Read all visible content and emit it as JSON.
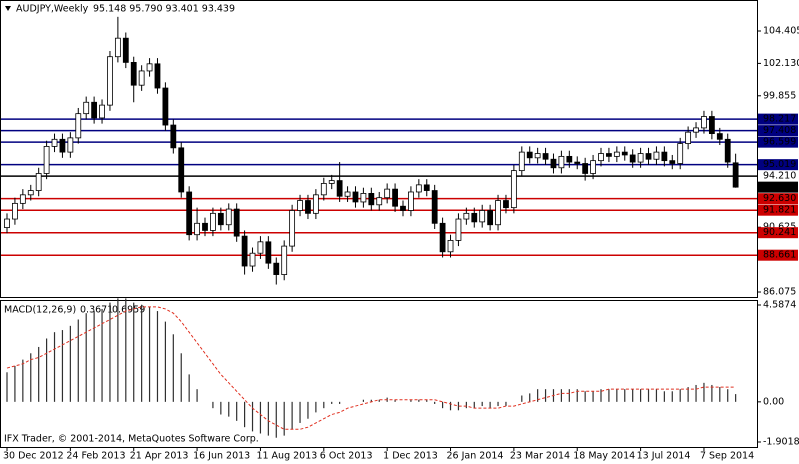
{
  "chart_data": [
    {
      "type": "candlestick",
      "title": "AUDJPY,Weekly",
      "subtitle": "95.148 95.790 93.401 93.439",
      "categories": [
        "30 Dec 2012",
        null,
        null,
        null,
        null,
        null,
        null,
        null,
        "24 Feb 2013",
        null,
        null,
        null,
        null,
        null,
        null,
        null,
        "21 Apr 2013",
        null,
        null,
        null,
        null,
        null,
        null,
        null,
        "16 Jun 2013",
        null,
        null,
        null,
        null,
        null,
        null,
        null,
        "11 Aug 2013",
        null,
        null,
        null,
        null,
        null,
        null,
        null,
        "6 Oct 2013",
        null,
        null,
        null,
        null,
        null,
        null,
        null,
        "1 Dec 2013",
        null,
        null,
        null,
        null,
        null,
        null,
        null,
        "26 Jan 2014",
        null,
        null,
        null,
        null,
        null,
        null,
        null,
        "23 Mar 2014",
        null,
        null,
        null,
        null,
        null,
        null,
        null,
        "18 May 2014",
        null,
        null,
        null,
        null,
        null,
        null,
        null,
        "13 Jul 2014",
        null,
        null,
        null,
        null,
        null,
        null,
        null,
        "7 Sep 2014",
        null,
        null,
        null,
        null
      ],
      "open": [
        90.6,
        91.2,
        92.3,
        92.9,
        93.2,
        94.4,
        96.3,
        96.8,
        95.9,
        96.9,
        98.6,
        99.4,
        98.3,
        99.2,
        102.6,
        103.9,
        102.2,
        100.6,
        101.6,
        102.1,
        100.4,
        97.8,
        96.2,
        93.1,
        90.1,
        90.9,
        90.4,
        91.6,
        90.8,
        91.9,
        90.0,
        87.9,
        88.8,
        89.6,
        88.1,
        87.3,
        89.3,
        91.8,
        92.5,
        91.6,
        92.9,
        93.7,
        93.9,
        92.8,
        93.1,
        92.4,
        93.0,
        92.2,
        92.7,
        93.3,
        92.1,
        91.8,
        93.1,
        93.6,
        93.2,
        90.9,
        88.9,
        89.7,
        91.2,
        91.6,
        91.0,
        91.8,
        90.8,
        92.5,
        92.0,
        94.6,
        95.9,
        95.5,
        95.8,
        95.4,
        94.8,
        95.6,
        95.2,
        95.1,
        94.4,
        95.3,
        95.8,
        95.6,
        95.9,
        95.7,
        95.2,
        95.8,
        95.4,
        95.9,
        95.3,
        95.1,
        96.5,
        97.3,
        97.6,
        98.4,
        97.2,
        96.8,
        95.148
      ],
      "high": [
        91.6,
        92.7,
        93.3,
        93.6,
        94.8,
        96.7,
        97.2,
        97.2,
        97.3,
        99.0,
        99.8,
        99.8,
        99.6,
        103.0,
        105.4,
        104.3,
        102.6,
        102.0,
        102.5,
        102.5,
        100.8,
        98.2,
        96.6,
        93.5,
        92.0,
        91.3,
        92.0,
        92.0,
        92.3,
        92.3,
        90.4,
        89.2,
        90.0,
        90.0,
        88.5,
        89.7,
        92.2,
        92.9,
        92.9,
        93.3,
        94.1,
        94.3,
        95.2,
        93.5,
        93.5,
        93.4,
        93.4,
        93.1,
        93.7,
        93.7,
        92.5,
        93.5,
        94.0,
        94.0,
        93.6,
        91.3,
        90.1,
        91.6,
        92.0,
        92.0,
        92.2,
        92.2,
        92.9,
        92.9,
        95.0,
        96.3,
        96.3,
        96.2,
        96.2,
        95.8,
        96.0,
        96.0,
        95.6,
        95.5,
        95.7,
        96.2,
        96.2,
        96.3,
        96.3,
        96.1,
        96.2,
        96.2,
        96.3,
        96.3,
        95.7,
        96.9,
        97.7,
        98.0,
        98.8,
        98.8,
        97.6,
        97.2,
        95.79
      ],
      "low": [
        90.2,
        90.8,
        91.9,
        92.5,
        92.8,
        94.0,
        95.9,
        95.5,
        95.5,
        96.5,
        98.2,
        97.9,
        97.9,
        98.8,
        102.2,
        101.8,
        99.4,
        100.2,
        101.2,
        100.0,
        97.4,
        95.8,
        92.7,
        89.7,
        89.7,
        90.0,
        90.0,
        90.4,
        90.4,
        89.6,
        87.3,
        87.5,
        88.4,
        87.7,
        86.6,
        86.9,
        88.9,
        91.4,
        91.2,
        91.2,
        92.5,
        93.3,
        92.4,
        92.4,
        92.0,
        92.0,
        91.8,
        91.8,
        92.3,
        91.7,
        91.4,
        91.4,
        92.7,
        92.8,
        90.5,
        88.5,
        88.5,
        89.3,
        90.8,
        90.6,
        90.6,
        90.4,
        90.4,
        91.6,
        91.6,
        94.2,
        95.1,
        95.1,
        95.0,
        94.4,
        94.4,
        94.8,
        94.7,
        93.9,
        94.0,
        94.9,
        95.2,
        95.2,
        95.3,
        94.8,
        94.8,
        95.0,
        95.0,
        94.9,
        94.7,
        94.7,
        96.1,
        96.9,
        97.2,
        96.8,
        96.4,
        94.8,
        93.401
      ],
      "close": [
        91.2,
        92.3,
        92.9,
        93.2,
        94.4,
        96.3,
        96.8,
        95.9,
        96.9,
        98.6,
        99.4,
        98.3,
        99.2,
        102.6,
        103.9,
        102.2,
        100.6,
        101.6,
        102.1,
        100.4,
        97.8,
        96.2,
        93.1,
        90.1,
        90.9,
        90.4,
        91.6,
        90.8,
        91.9,
        90.0,
        87.9,
        88.8,
        89.6,
        88.1,
        87.3,
        89.3,
        91.8,
        92.5,
        91.6,
        92.9,
        93.7,
        93.9,
        92.8,
        93.1,
        92.4,
        93.0,
        92.2,
        92.7,
        93.3,
        92.1,
        91.8,
        93.1,
        93.6,
        93.2,
        90.9,
        88.9,
        89.7,
        91.2,
        91.6,
        91.0,
        91.8,
        90.8,
        92.5,
        92.0,
        94.6,
        95.9,
        95.5,
        95.8,
        95.4,
        94.8,
        95.6,
        95.2,
        95.1,
        94.4,
        95.3,
        95.8,
        95.6,
        95.9,
        95.7,
        95.2,
        95.8,
        95.4,
        95.9,
        95.3,
        95.1,
        96.5,
        97.3,
        97.6,
        98.4,
        97.2,
        96.8,
        95.2,
        93.439
      ],
      "ylim": [
        85.725,
        106.582
      ],
      "yticks": [
        104.405,
        {
          "value": 102.13,
          "label": "102.130"
        },
        99.855,
        90.625,
        86.075
      ],
      "levels": [
        {
          "value": 98.217,
          "color": "#000080"
        },
        {
          "value": 97.408,
          "color": "#000080"
        },
        {
          "value": 96.599,
          "color": "#000080"
        },
        {
          "value": 95.019,
          "color": "#000080"
        },
        {
          "value": 94.21,
          "label": "94.210",
          "color": "#000000"
        },
        {
          "value": 92.63,
          "label": "92.630",
          "color": "#cc0000"
        },
        {
          "value": 91.821,
          "color": "#cc0000"
        },
        {
          "value": 90.241,
          "color": "#cc0000"
        },
        {
          "value": 88.661,
          "color": "#cc0000"
        }
      ]
    },
    {
      "type": "macd",
      "title": "MACD(12,26,9)",
      "annotation": "IFX Trader, © 2001-2014, MetaQuotes Software Corp.",
      "histogram": {
        "color": "#303030",
        "values": [
          1.4,
          1.7,
          2.0,
          2.3,
          2.6,
          3.0,
          3.3,
          3.4,
          3.6,
          3.9,
          4.2,
          4.3,
          4.4,
          4.7,
          4.9,
          4.9,
          4.7,
          4.6,
          4.5,
          4.3,
          3.8,
          3.2,
          2.3,
          1.3,
          0.6,
          0.0,
          -0.3,
          -0.6,
          -0.7,
          -0.9,
          -1.2,
          -1.4,
          -1.5,
          -1.6,
          -1.7,
          -1.6,
          -1.3,
          -1.0,
          -0.8,
          -0.5,
          -0.3,
          -0.1,
          -0.1,
          0.0,
          0.0,
          0.1,
          0.1,
          0.1,
          0.2,
          0.1,
          0.0,
          0.1,
          0.1,
          0.1,
          -0.1,
          -0.3,
          -0.4,
          -0.4,
          -0.3,
          -0.3,
          -0.2,
          -0.3,
          -0.2,
          -0.2,
          0.0,
          0.3,
          0.4,
          0.6,
          0.6,
          0.6,
          0.6,
          0.6,
          0.6,
          0.5,
          0.5,
          0.6,
          0.6,
          0.6,
          0.6,
          0.6,
          0.6,
          0.6,
          0.6,
          0.5,
          0.5,
          0.6,
          0.7,
          0.8,
          0.9,
          0.8,
          0.7,
          0.6,
          0.3671
        ]
      },
      "signal": {
        "color": "#e03020",
        "values": [
          1.6,
          1.7,
          1.8,
          2.0,
          2.1,
          2.3,
          2.5,
          2.7,
          2.9,
          3.1,
          3.3,
          3.5,
          3.7,
          3.9,
          4.1,
          4.3,
          4.4,
          4.5,
          4.5,
          4.5,
          4.4,
          4.2,
          3.8,
          3.3,
          2.8,
          2.3,
          1.8,
          1.3,
          0.9,
          0.5,
          0.1,
          -0.3,
          -0.6,
          -0.9,
          -1.1,
          -1.3,
          -1.3,
          -1.3,
          -1.2,
          -1.0,
          -0.8,
          -0.6,
          -0.5,
          -0.3,
          -0.2,
          -0.1,
          0.0,
          0.1,
          0.1,
          0.1,
          0.1,
          0.1,
          0.1,
          0.1,
          0.1,
          0.0,
          -0.1,
          -0.2,
          -0.2,
          -0.3,
          -0.3,
          -0.3,
          -0.3,
          -0.2,
          -0.2,
          -0.1,
          0.0,
          0.1,
          0.2,
          0.3,
          0.4,
          0.4,
          0.5,
          0.5,
          0.5,
          0.5,
          0.6,
          0.6,
          0.6,
          0.6,
          0.6,
          0.6,
          0.6,
          0.6,
          0.6,
          0.6,
          0.6,
          0.6,
          0.7,
          0.7,
          0.7,
          0.7,
          0.6959
        ]
      },
      "ylim": [
        -2.139,
        4.824
      ],
      "yticks": [
        4.5874,
        {
          "value": 0,
          "label": "0.00"
        },
        -1.9018
      ]
    }
  ]
}
